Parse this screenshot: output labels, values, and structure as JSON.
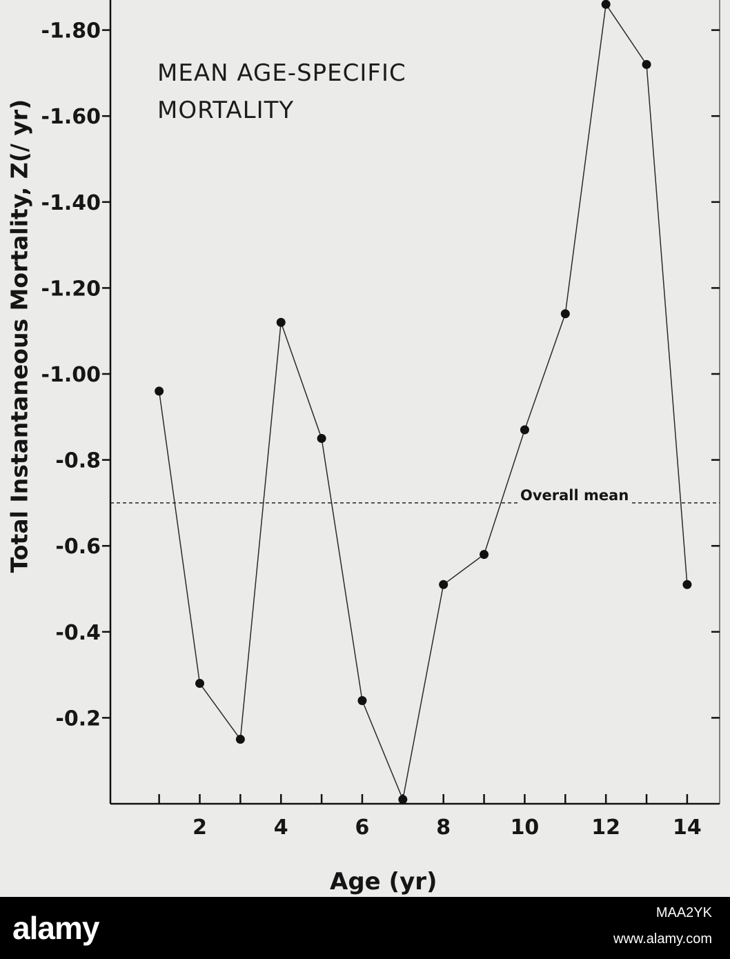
{
  "chart_data": {
    "type": "line",
    "title_lines": [
      "MEAN AGE-SPECIFIC",
      "MORTALITY"
    ],
    "xlabel": "Age (yr)",
    "ylabel": "Total Instantaneous Mortality, Z(/ yr)",
    "x_ticks": [
      1,
      2,
      3,
      4,
      5,
      6,
      7,
      8,
      9,
      10,
      11,
      12,
      13,
      14
    ],
    "x_tick_labels": [
      "2",
      "4",
      "6",
      "8",
      "10",
      "12",
      "14"
    ],
    "x_tick_label_values": [
      2,
      4,
      6,
      8,
      10,
      12,
      14
    ],
    "xlim": [
      -0.2,
      14.8
    ],
    "y_ticks": [
      0.2,
      0.4,
      0.6,
      0.8,
      1.0,
      1.2,
      1.4,
      1.6,
      1.8
    ],
    "y_tick_labels": [
      "-0.2",
      "-0.4",
      "-0.6",
      "-0.8",
      "-1.00",
      "-1.20",
      "-1.40",
      "-1.60",
      "-1.80"
    ],
    "ylim": [
      0,
      1.87
    ],
    "x": [
      1,
      2,
      3,
      4,
      5,
      6,
      7,
      8,
      9,
      10,
      11,
      12,
      13,
      14
    ],
    "values": [
      0.96,
      0.28,
      0.15,
      1.12,
      0.85,
      0.24,
      0.01,
      0.51,
      0.58,
      0.87,
      1.14,
      1.86,
      1.72,
      0.51
    ],
    "reference_line": {
      "label": "Overall mean",
      "value": 0.7
    },
    "grid": false,
    "colors": {
      "line": "#2a2a2a",
      "marker": "#111111",
      "axis": "#111111"
    }
  },
  "footer": {
    "brand": "alamy",
    "image_code": "MAA2YK",
    "url": "www.alamy.com"
  }
}
